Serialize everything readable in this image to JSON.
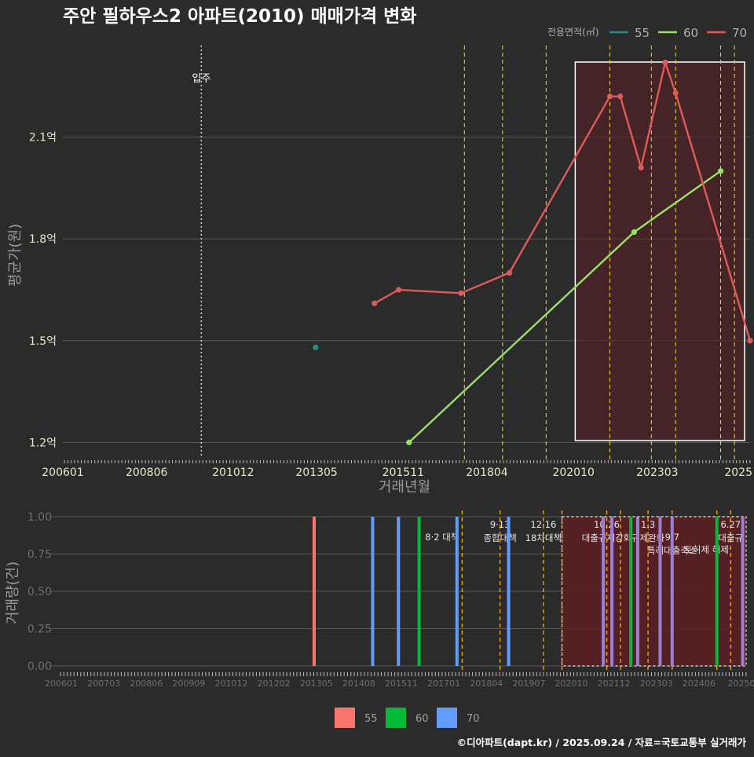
{
  "title": "주안 필하우스2 아파트(2010) 매매가격 변화",
  "credit": "©디아파트(dapt.kr) / 2025.09.24 / 자료=국토교통부 실거래가",
  "colors": {
    "bg": "#2b2b2b",
    "grid": "#5a5a5a",
    "s55_line": "#2a8a8a",
    "s60_line": "#9be06a",
    "s70_line": "#e05a5a",
    "b55": "#f8766d",
    "b60": "#00ba38",
    "b70": "#619cff",
    "policy": "#e6d200",
    "policy_bottom": "#f0a500",
    "highlight_fill": "#5a1f22",
    "highlight_bar": "#9b7fd4"
  },
  "chart_data": [
    {
      "type": "line",
      "title": "주안 필하우스2 아파트(2010) 매매가격 변화",
      "xlabel": "거래년월",
      "ylabel": "평균가(원)",
      "x_ticks": [
        "200601",
        "200806",
        "201012",
        "201305",
        "201511",
        "201804",
        "202010",
        "202303",
        "2025"
      ],
      "y_ticks": [
        "1.2억",
        "1.5억",
        "1.8억",
        "2.1억"
      ],
      "y_tick_values": [
        1.2,
        1.5,
        1.8,
        2.1
      ],
      "ylim": [
        1.15,
        2.4
      ],
      "xlim": [
        2006.0,
        2025.85
      ],
      "legend_title": "전용면적(㎡)",
      "legend": [
        "55",
        "60",
        "70"
      ],
      "move_in": {
        "x": 2010.0,
        "label": "입주"
      },
      "policy_lines": [
        2017.6,
        2018.7,
        2019.96,
        2021.8,
        2023.0,
        2023.7,
        2025.0,
        2025.4
      ],
      "highlight": [
        2020.8,
        2025.85
      ],
      "series": [
        {
          "name": "55",
          "points": [
            {
              "x": 2013.3,
              "y": 1.48
            }
          ]
        },
        {
          "name": "60",
          "points": [
            {
              "x": 2016.0,
              "y": 1.2
            },
            {
              "x": 2022.5,
              "y": 1.82
            },
            {
              "x": 2025.0,
              "y": 2.0
            }
          ]
        },
        {
          "name": "70",
          "points": [
            {
              "x": 2015.0,
              "y": 1.61
            },
            {
              "x": 2015.7,
              "y": 1.65
            },
            {
              "x": 2017.5,
              "y": 1.64
            },
            {
              "x": 2018.9,
              "y": 1.7
            },
            {
              "x": 2021.8,
              "y": 2.22
            },
            {
              "x": 2022.1,
              "y": 2.22
            },
            {
              "x": 2022.7,
              "y": 2.01
            },
            {
              "x": 2023.4,
              "y": 2.32
            },
            {
              "x": 2023.7,
              "y": 2.23
            },
            {
              "x": 2025.85,
              "y": 1.5
            }
          ]
        }
      ]
    },
    {
      "type": "bar",
      "ylabel": "거래량(건)",
      "y_ticks": [
        "0.00",
        "0.25",
        "0.50",
        "0.75",
        "1.00"
      ],
      "y_tick_values": [
        0,
        0.25,
        0.5,
        0.75,
        1.0
      ],
      "ylim": [
        0,
        1.0
      ],
      "xlim": [
        2006.0,
        2025.85
      ],
      "x_ticks": [
        "200601",
        "200703",
        "200806",
        "200909",
        "201012",
        "201202",
        "201305",
        "201408",
        "201511",
        "201701",
        "201804",
        "201907",
        "202010",
        "202112",
        "202303",
        "202406",
        "20250"
      ],
      "legend": [
        "55",
        "60",
        "70"
      ],
      "bars": [
        {
          "x": 2013.3,
          "series": "55",
          "value": 1
        },
        {
          "x": 2015.0,
          "series": "70",
          "value": 1
        },
        {
          "x": 2015.75,
          "series": "70",
          "value": 1
        },
        {
          "x": 2016.35,
          "series": "60",
          "value": 1
        },
        {
          "x": 2017.45,
          "series": "70",
          "value": 1
        },
        {
          "x": 2018.95,
          "series": "70",
          "value": 1
        },
        {
          "x": 2021.7,
          "series": "70",
          "value": 1
        },
        {
          "x": 2021.95,
          "series": "70",
          "value": 1
        },
        {
          "x": 2022.5,
          "series": "60",
          "value": 1
        },
        {
          "x": 2022.7,
          "series": "70",
          "value": 1
        },
        {
          "x": 2023.35,
          "series": "70",
          "value": 1
        },
        {
          "x": 2023.7,
          "series": "70",
          "value": 1
        },
        {
          "x": 2025.0,
          "series": "60",
          "value": 1
        },
        {
          "x": 2025.75,
          "series": "70",
          "value": 1
        }
      ],
      "policy_lines": [
        2017.6,
        2018.7,
        2019.96,
        2020.5,
        2021.8,
        2022.2,
        2023.0,
        2023.7,
        2025.0,
        2025.4
      ],
      "policy_labels": [
        {
          "x": 2017.6,
          "lines": [
            "8·2 대책"
          ],
          "anchor": "end",
          "row": 1
        },
        {
          "x": 2018.7,
          "lines": [
            "9·13",
            "종합대책"
          ],
          "anchor": "middle",
          "row": 0
        },
        {
          "x": 2019.96,
          "lines": [
            "12·16",
            "18차대책"
          ],
          "anchor": "middle",
          "row": 0
        },
        {
          "x": 2021.8,
          "lines": [
            "10.26",
            "대출규제강화"
          ],
          "anchor": "middle",
          "row": 0
        },
        {
          "x": 2023.0,
          "lines": [
            "1.3",
            "규제완화"
          ],
          "anchor": "middle",
          "row": 0
        },
        {
          "x": 2023.7,
          "lines": [
            "9.7",
            "특례대출축소"
          ],
          "anchor": "middle",
          "row": 1
        },
        {
          "x": 2024.7,
          "lines": [
            "토허제 해제"
          ],
          "anchor": "middle",
          "row": 2
        },
        {
          "x": 2025.4,
          "lines": [
            "6.27",
            "대출규"
          ],
          "anchor": "middle",
          "row": 0
        }
      ],
      "highlight": [
        2020.5,
        2025.85
      ]
    }
  ]
}
